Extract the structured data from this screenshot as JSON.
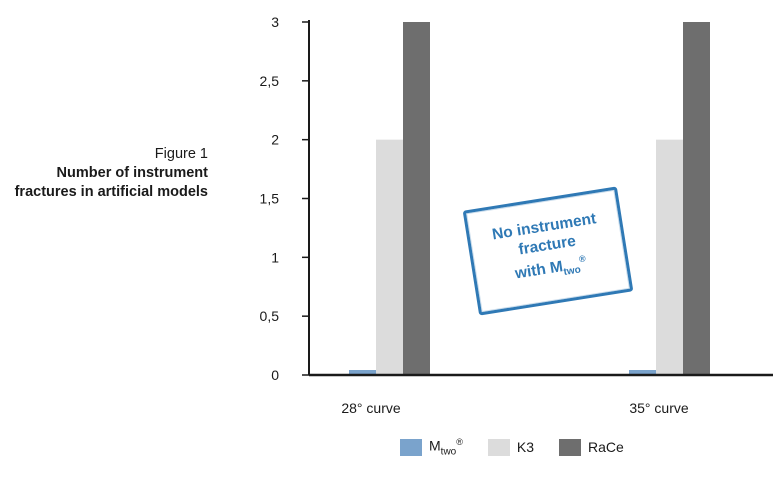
{
  "caption": {
    "figure": "Figure 1",
    "title": "Number of instrument fractures in artificial models"
  },
  "stamp": {
    "line1": "No instrument",
    "line2": "fracture",
    "line3_prefix": "with M",
    "line3_sub": "two",
    "line3_sup": "®"
  },
  "chart_data": {
    "type": "bar",
    "categories": [
      "28° curve",
      "35° curve"
    ],
    "series": [
      {
        "name": "Mtwo®",
        "values": [
          0,
          0
        ],
        "color": "#7aa3cc"
      },
      {
        "name": "K3",
        "values": [
          2,
          2
        ],
        "color": "#dcdcdc"
      },
      {
        "name": "RaCe",
        "values": [
          3,
          3
        ],
        "color": "#6e6e6e"
      }
    ],
    "ylim": [
      0,
      3
    ],
    "yticks": [
      0,
      0.5,
      1,
      1.5,
      2,
      2.5,
      3
    ],
    "ytick_labels": [
      "0",
      "0,5",
      "1",
      "1,5",
      "2",
      "2,5",
      "3"
    ],
    "grid": false,
    "legend_position": "bottom"
  },
  "legend": {
    "mtwo_base": "M",
    "mtwo_sub": "two",
    "mtwo_sup": "®",
    "k3": "K3",
    "race": "RaCe"
  },
  "colors": {
    "axis": "#1a1a1a",
    "stamp": "#2f79b5"
  }
}
